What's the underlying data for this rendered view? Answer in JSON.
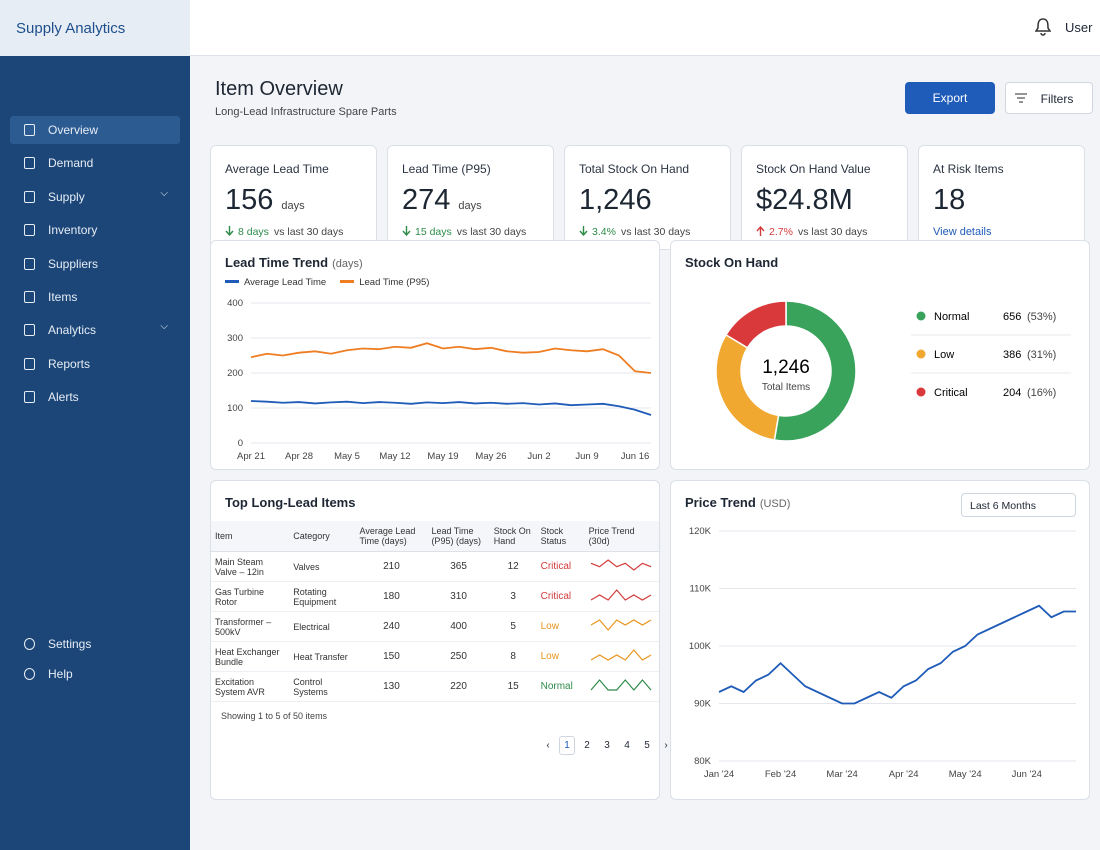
{
  "app": {
    "title": "Supply Analytics",
    "user": "User"
  },
  "nav": {
    "items": [
      "Overview",
      "Demand",
      "Supply",
      "Inventory",
      "Suppliers",
      "Items",
      "Analytics",
      "Reports",
      "Alerts"
    ],
    "footer": [
      "Settings",
      "Help"
    ]
  },
  "page": {
    "title": "Item Overview",
    "subtitle": "Long-Lead Infrastructure Spare Parts",
    "export": "Export",
    "filters": "Filters"
  },
  "kpis": [
    {
      "label": "Average Lead Time",
      "value": "156",
      "unit": "days",
      "delta": "8 days",
      "compare": "vs last 30 days",
      "trend": "down",
      "color": "#2e8b4a"
    },
    {
      "label": "Lead Time (P95)",
      "value": "274",
      "unit": "days",
      "delta": "15 days",
      "compare": "vs last 30 days",
      "trend": "down",
      "color": "#2e8b4a"
    },
    {
      "label": "Total Stock On Hand",
      "value": "1,246",
      "delta": "3.4%",
      "compare": "vs last 30 days",
      "trend": "down",
      "color": "#2e8b4a"
    },
    {
      "label": "Stock On Hand Value",
      "value": "$24.8M",
      "delta": "2.7%",
      "compare": "vs last 30 days",
      "trend": "up",
      "color": "#d23b3b"
    },
    {
      "label": "At Risk Items",
      "value": "18",
      "link": "View details"
    }
  ],
  "lead_chart": {
    "type": "line",
    "title": "Lead Time Trend",
    "unit": "(days)",
    "categories": [
      "Apr 21",
      null,
      null,
      "Apr 28",
      null,
      null,
      "May 5",
      null,
      null,
      "May 12",
      null,
      null,
      "May 19",
      null,
      null,
      "May 26",
      null,
      null,
      "Jun 2",
      null,
      null,
      "Jun 9",
      null,
      null,
      "Jun 16",
      null
    ],
    "series": [
      {
        "name": "Average Lead Time",
        "color": "#1f5bb8",
        "values": [
          120,
          118,
          115,
          117,
          113,
          116,
          118,
          114,
          117,
          115,
          112,
          116,
          114,
          117,
          113,
          115,
          112,
          114,
          110,
          113,
          108,
          110,
          112,
          105,
          95,
          80
        ]
      },
      {
        "name": "Lead Time (P95)",
        "color": "#ef7d22",
        "values": [
          245,
          255,
          250,
          258,
          262,
          255,
          265,
          270,
          268,
          275,
          272,
          285,
          270,
          275,
          268,
          272,
          262,
          258,
          260,
          270,
          265,
          262,
          268,
          250,
          205,
          200
        ]
      }
    ],
    "ylim": [
      0,
      400
    ],
    "yticks": [
      0,
      100,
      200,
      300,
      400
    ],
    "grid": true
  },
  "stock_chart": {
    "type": "pie",
    "title": "Stock On Hand",
    "center_value": "1,246",
    "center_label": "Total Items",
    "categories": [
      "Normal",
      "Low",
      "Critical"
    ],
    "values": [
      656,
      386,
      204
    ],
    "percents": [
      53,
      31,
      16
    ],
    "percent_labels": [
      "(53%)",
      "(31%)",
      "(16%)"
    ],
    "colors": [
      "#3aa35b",
      "#f0a830",
      "#d9393a"
    ]
  },
  "price_chart": {
    "type": "line",
    "title": "Price Trend",
    "unit": "(USD)",
    "range": "Last 6 Months",
    "categories": [
      "Jan '24",
      null,
      null,
      null,
      null,
      "Feb '24",
      null,
      null,
      null,
      null,
      "Mar '24",
      null,
      null,
      null,
      null,
      "Apr '24",
      null,
      null,
      null,
      null,
      "May '24",
      null,
      null,
      null,
      null,
      "Jun '24",
      null,
      null,
      null,
      null
    ],
    "series": [
      {
        "color": "#1f5bb8",
        "values": [
          92000,
          93000,
          92000,
          94000,
          95000,
          97000,
          95000,
          93000,
          92000,
          91000,
          90000,
          90000,
          91000,
          92000,
          91000,
          93000,
          94000,
          96000,
          97000,
          99000,
          100000,
          102000,
          103000,
          104000,
          105000,
          106000,
          107000,
          105000,
          106000,
          106000
        ]
      }
    ],
    "ylim": [
      80000,
      120000
    ],
    "yticks": [
      {
        "value": 80000,
        "label": "80K"
      },
      {
        "value": 90000,
        "label": "90K"
      },
      {
        "value": 100000,
        "label": "100K"
      },
      {
        "value": 110000,
        "label": "110K"
      },
      {
        "value": 120000,
        "label": "120K"
      }
    ],
    "grid": true
  },
  "table": {
    "title": "Top Long-Lead Items",
    "headers": [
      "Item",
      "Category",
      "Average Lead Time (days)",
      "Lead Time (P95) (days)",
      "Stock On Hand",
      "Stock Status",
      "Price Trend (30d)"
    ],
    "rows": [
      {
        "item": "Main Steam Valve – 12in",
        "category": "Valves",
        "avg": 210,
        "p95": 365,
        "stock": 12,
        "status": "Critical",
        "color": "#d23b3b",
        "trend": [
          5,
          4,
          6,
          4,
          5,
          3,
          5,
          4
        ]
      },
      {
        "item": "Gas Turbine Rotor",
        "category": "Rotating Equipment",
        "avg": 180,
        "p95": 310,
        "stock": 3,
        "status": "Critical",
        "color": "#d23b3b",
        "trend": [
          4,
          5,
          4,
          6,
          4,
          5,
          4,
          5
        ]
      },
      {
        "item": "Transformer – 500kV",
        "category": "Electrical",
        "avg": 240,
        "p95": 400,
        "stock": 5,
        "status": "Low",
        "color": "#e8951e",
        "trend": [
          4,
          5,
          3,
          5,
          4,
          5,
          4,
          5
        ]
      },
      {
        "item": "Heat Exchanger Bundle",
        "category": "Heat Transfer",
        "avg": 150,
        "p95": 250,
        "stock": 8,
        "status": "Low",
        "color": "#e8951e",
        "trend": [
          4,
          5,
          4,
          5,
          4,
          6,
          4,
          5
        ]
      },
      {
        "item": "Excitation System AVR",
        "category": "Control Systems",
        "avg": 130,
        "p95": 220,
        "stock": 15,
        "status": "Normal",
        "color": "#2e8b4a",
        "trend": [
          4,
          5,
          4,
          4,
          5,
          4,
          5,
          4
        ]
      }
    ],
    "footer": "Showing 1 to 5 of 50 items",
    "pages": [
      1,
      2,
      3,
      4,
      5
    ]
  }
}
